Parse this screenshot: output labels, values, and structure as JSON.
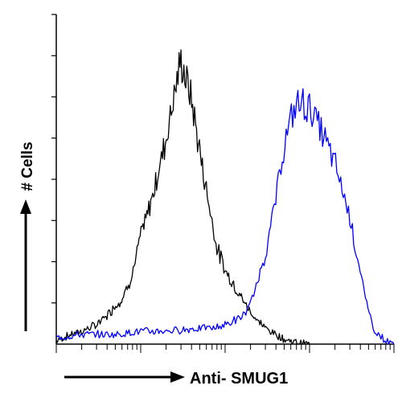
{
  "chart_data": {
    "type": "line",
    "title": "",
    "xlabel": "Anti- SMUG1",
    "ylabel": "# Cells",
    "x_scale": "log",
    "xlim": [
      1,
      10000
    ],
    "ylim": [
      0,
      100
    ],
    "grid": false,
    "legend": "none",
    "series": [
      {
        "color": "#000000",
        "x": [
          1,
          1.5,
          2,
          3,
          4,
          5,
          6,
          7,
          8,
          9,
          10,
          12,
          15,
          20,
          25,
          30,
          40,
          50,
          60,
          80,
          100,
          130,
          160,
          200,
          250,
          300,
          400,
          500,
          700,
          1000
        ],
        "y": [
          1,
          3,
          4,
          6,
          9,
          12,
          14,
          18,
          22,
          28,
          34,
          40,
          50,
          64,
          78,
          88,
          76,
          60,
          48,
          30,
          23,
          18,
          14,
          10,
          7,
          5,
          3,
          1.5,
          0.5,
          0
        ]
      },
      {
        "color": "#0000ff",
        "x": [
          1,
          2,
          5,
          10,
          20,
          50,
          70,
          100,
          150,
          200,
          300,
          400,
          500,
          700,
          1000,
          1500,
          2000,
          3000,
          4000,
          5000,
          6000,
          8000,
          10000
        ],
        "y": [
          2,
          3,
          3,
          4,
          4,
          5,
          5,
          6,
          8,
          12,
          28,
          45,
          62,
          75,
          74,
          64,
          56,
          40,
          22,
          10,
          4,
          1,
          0
        ]
      }
    ],
    "colors": {
      "axis": "#000000"
    }
  }
}
